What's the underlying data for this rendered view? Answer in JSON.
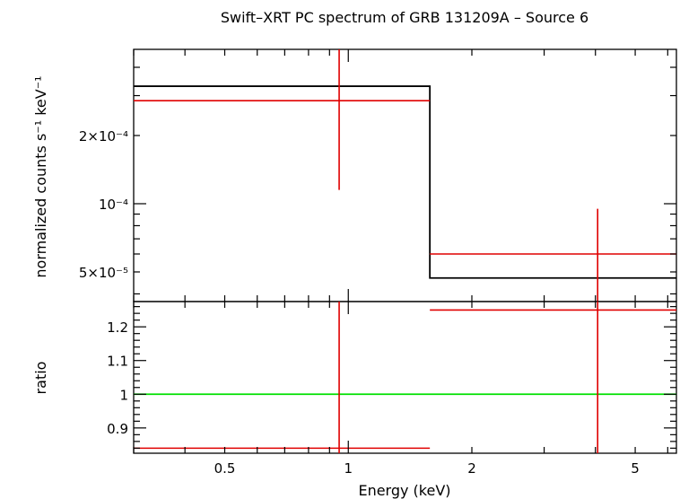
{
  "chart_data": {
    "type": "step",
    "title": "Swift–XRT PC spectrum of GRB 131209A – Source 6",
    "xlabel": "Energy (keV)",
    "xscale": "log",
    "xlim": [
      0.3,
      6.3
    ],
    "xtick_labels": [
      {
        "value": 0.5,
        "label": "0.5"
      },
      {
        "value": 1,
        "label": "1"
      },
      {
        "value": 2,
        "label": "2"
      },
      {
        "value": 5,
        "label": "5"
      }
    ],
    "panels": [
      {
        "name": "spectrum",
        "ylabel": "normalized counts s⁻¹ keV⁻¹",
        "yscale": "log",
        "ylim": [
          3.7e-05,
          0.00048
        ],
        "ytick_labels": [
          {
            "value": 5e-05,
            "label": "5×10⁻⁵"
          },
          {
            "value": 0.0001,
            "label": "10⁻⁴"
          },
          {
            "value": 0.0002,
            "label": "2×10⁻⁴"
          }
        ],
        "model": {
          "color": "#000000",
          "bins": [
            {
              "x0": 0.3,
              "x1": 1.58,
              "y": 0.00033
            },
            {
              "x0": 1.58,
              "x1": 6.3,
              "y": 4.7e-05
            }
          ]
        },
        "data": {
          "color": "#e00000",
          "points": [
            {
              "x": 0.95,
              "xlo": 0.3,
              "xhi": 1.58,
              "y": 0.000285,
              "ylo": 0.000115,
              "yhi": 0.00048
            },
            {
              "x": 4.05,
              "xlo": 1.58,
              "xhi": 6.3,
              "y": 6e-05,
              "ylo": 3.7e-05,
              "yhi": 9.5e-05
            }
          ]
        }
      },
      {
        "name": "ratio",
        "ylabel": "ratio",
        "yscale": "linear",
        "ylim": [
          0.825,
          1.275
        ],
        "ytick_labels": [
          {
            "value": 0.9,
            "label": "0.9"
          },
          {
            "value": 1,
            "label": "1"
          },
          {
            "value": 1.1,
            "label": "1.1"
          },
          {
            "value": 1.2,
            "label": "1.2"
          }
        ],
        "reference": {
          "y": 1,
          "color": "#00e000"
        },
        "data": {
          "color": "#e00000",
          "points": [
            {
              "x": 0.95,
              "xlo": 0.3,
              "xhi": 1.58,
              "y": 0.84,
              "ylo": 0.825,
              "yhi": 1.275
            },
            {
              "x": 4.05,
              "xlo": 1.58,
              "xhi": 6.3,
              "y": 1.25,
              "ylo": 0.825,
              "yhi": 1.275
            }
          ]
        }
      }
    ]
  }
}
